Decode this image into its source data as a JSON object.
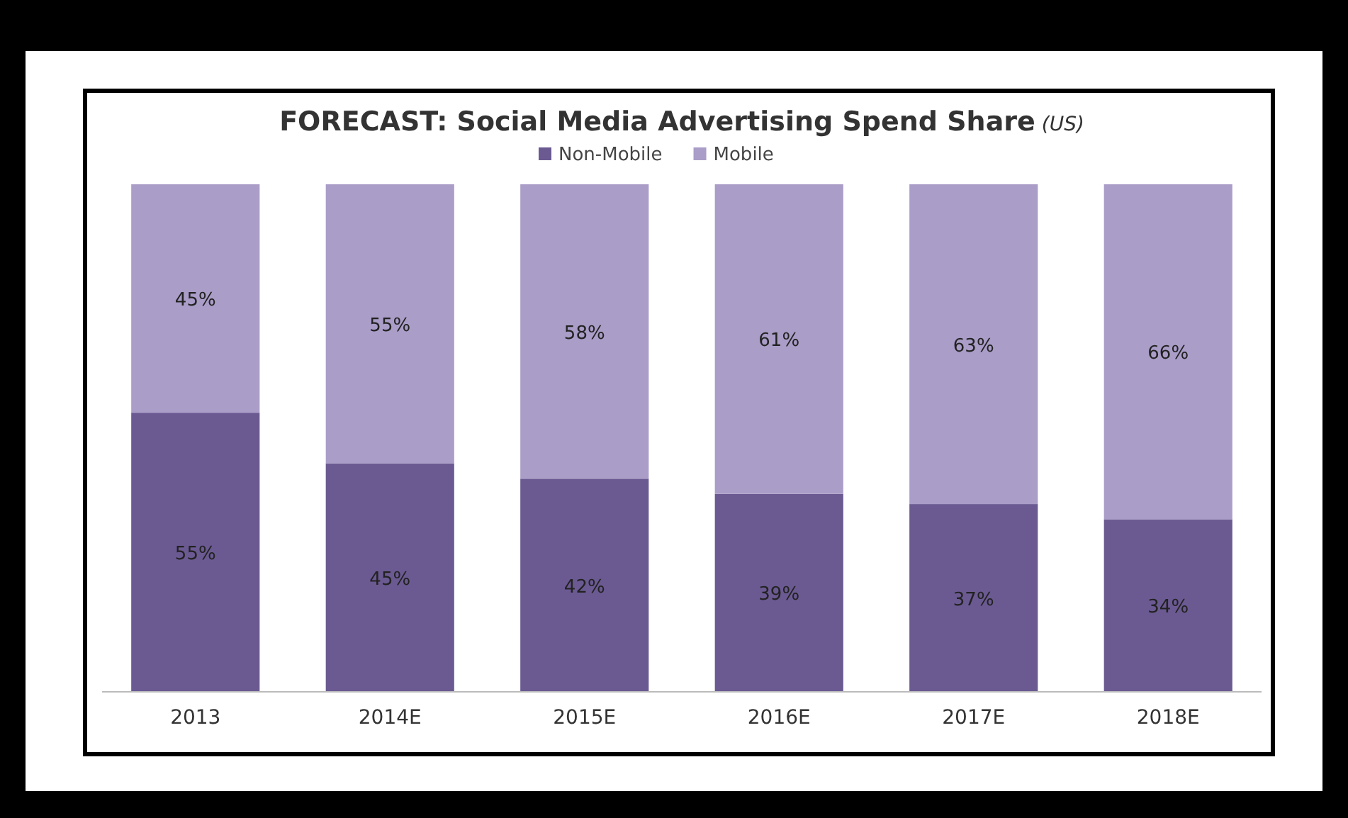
{
  "chart_data": {
    "type": "bar",
    "stacked": true,
    "title": "FORECAST: Social Media Advertising Spend Share",
    "subtitle": "(US)",
    "categories": [
      "2013",
      "2014E",
      "2015E",
      "2016E",
      "2017E",
      "2018E"
    ],
    "series": [
      {
        "name": "Non-Mobile",
        "color": "#6b5a92",
        "values": [
          55,
          45,
          42,
          39,
          37,
          34
        ],
        "value_labels": [
          "55%",
          "45%",
          "42%",
          "39%",
          "37%",
          "34%"
        ]
      },
      {
        "name": "Mobile",
        "color": "#aa9dc8",
        "values": [
          45,
          55,
          58,
          61,
          63,
          66
        ],
        "value_labels": [
          "45%",
          "55%",
          "58%",
          "61%",
          "63%",
          "66%"
        ]
      }
    ],
    "legend": "top"
  }
}
